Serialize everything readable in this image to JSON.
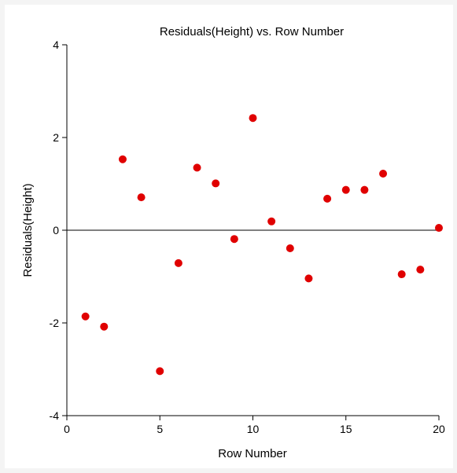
{
  "chart_data": {
    "type": "scatter",
    "title": "Residuals(Height) vs. Row Number",
    "xlabel": "Row Number",
    "ylabel": "Residuals(Height)",
    "xlim": [
      0,
      20
    ],
    "ylim": [
      -4,
      4
    ],
    "xticks": [
      0,
      5,
      10,
      15,
      20
    ],
    "yticks": [
      -4,
      -2,
      0,
      2,
      4
    ],
    "reference_line_y": 0,
    "grid": false,
    "series": [
      {
        "color": "#e00000",
        "x": [
          1,
          2,
          3,
          4,
          5,
          6,
          7,
          8,
          9,
          10,
          11,
          12,
          13,
          14,
          15,
          16,
          17,
          18,
          19,
          20
        ],
        "y": [
          -1.86,
          -2.08,
          1.53,
          0.71,
          -3.04,
          -0.71,
          1.35,
          1.01,
          -0.19,
          2.42,
          0.19,
          -0.39,
          -1.04,
          0.68,
          0.87,
          0.87,
          1.22,
          -0.95,
          -0.85,
          0.05
        ]
      }
    ]
  }
}
